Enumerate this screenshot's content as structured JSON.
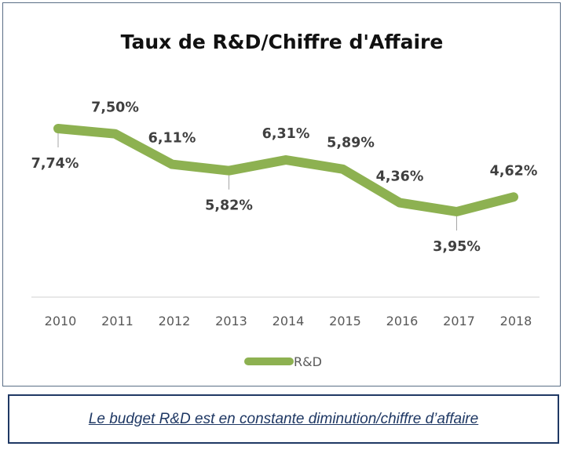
{
  "chart_data": {
    "type": "line",
    "title": "Taux de R&D/Chiffre d'Affaire",
    "xlabel": "",
    "ylabel": "",
    "x": [
      "2010",
      "2011",
      "2012",
      "2013",
      "2014",
      "2015",
      "2016",
      "2017",
      "2018"
    ],
    "series": [
      {
        "name": "R&D",
        "values": [
          7.74,
          7.5,
          6.11,
          5.82,
          6.31,
          5.89,
          4.36,
          3.95,
          4.62
        ],
        "labels": [
          "7,74%",
          "7,50%",
          "6,11%",
          "5,82%",
          "6,31%",
          "5,89%",
          "4,36%",
          "3,95%",
          "4,62%"
        ],
        "color": "#8db151"
      }
    ],
    "y_axis_visible": false,
    "grid": false,
    "legend": "bottom"
  },
  "caption": "Le budget R&D est en constante diminution/chiffre d’affaire",
  "colors": {
    "line": "#8db151",
    "axis": "#d9d9d9",
    "leader": "#a6a6a6",
    "frame": "#5a6e86",
    "caption": "#1f3864"
  }
}
